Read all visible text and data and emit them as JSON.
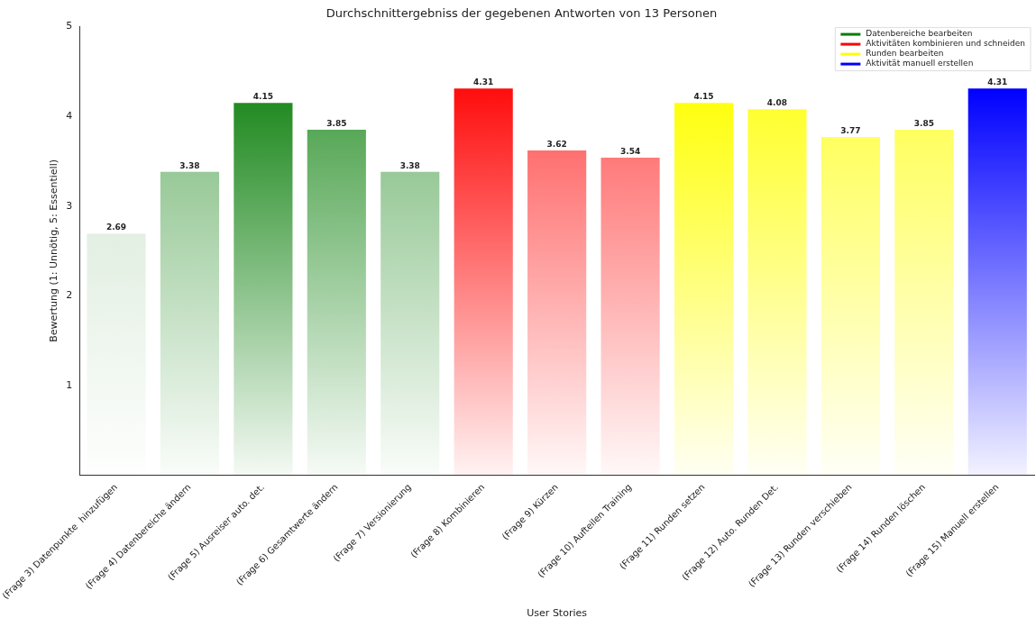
{
  "chart_data": {
    "type": "bar",
    "title": "Durchschnittergebniss der gegebenen Antworten von 13 Personen",
    "xlabel": "User Stories",
    "ylabel": "Bewertung (1: Unnötig, 5: Essentiell)",
    "categories": [
      "(Frage 3) Datenpunkte  hinzufügen",
      "(Frage 4) Datenbereiche ändern",
      "(Frage 5) Ausreiser auto. det.",
      "(Frage 6) Gesamtwerte ändern",
      "(Frage 7) Versionierung",
      "(Frage 8) Kombinieren",
      "(Frage 9) Kürzen",
      "(Frage 10) Aufteilen Training",
      "(Frage 11) Runden setzen",
      "(Frage 12) Auto. Runden Det.",
      "(Frage 13) Runden verschieben",
      "(Frage 14) Runden löschen",
      "(Frage 15) Manuell erstellen"
    ],
    "series": [
      {
        "name": "Datenbereiche bearbeiten",
        "color": "#008000",
        "colors": [
          "#e2efe2",
          "#98c998",
          "#228b22",
          "#58a858",
          "#98c998",
          null,
          null,
          null,
          null,
          null,
          null,
          null,
          null
        ],
        "values": [
          2.69,
          3.38,
          4.15,
          3.85,
          3.38,
          null,
          null,
          null,
          null,
          null,
          null,
          null,
          null
        ]
      },
      {
        "name": "Aktivitäten kombinieren und schneiden",
        "color": "#ff0000",
        "colors": [
          null,
          null,
          null,
          null,
          null,
          "#ff0d0d",
          "#ff7070",
          "#ff7a7a",
          null,
          null,
          null,
          null,
          null
        ],
        "values": [
          null,
          null,
          null,
          null,
          null,
          4.31,
          3.62,
          3.54,
          null,
          null,
          null,
          null,
          null
        ]
      },
      {
        "name": "Runden bearbeiten",
        "color": "#ffff00",
        "colors": [
          null,
          null,
          null,
          null,
          null,
          null,
          null,
          null,
          "#ffff10",
          "#ffff30",
          "#ffff60",
          "#ffff60",
          null
        ],
        "values": [
          null,
          null,
          null,
          null,
          null,
          null,
          null,
          null,
          4.15,
          4.08,
          3.77,
          3.85,
          null
        ]
      },
      {
        "name": "Aktivität manuell erstellen",
        "color": "#0000ff",
        "colors": [
          null,
          null,
          null,
          null,
          null,
          null,
          null,
          null,
          null,
          null,
          null,
          null,
          "#0000ff"
        ],
        "values": [
          null,
          null,
          null,
          null,
          null,
          null,
          null,
          null,
          null,
          null,
          null,
          null,
          4.31
        ]
      }
    ],
    "ylim": [
      0,
      5
    ],
    "yticks": [
      1,
      2,
      3,
      4,
      5
    ],
    "data_labels": true,
    "legend": "top right"
  }
}
